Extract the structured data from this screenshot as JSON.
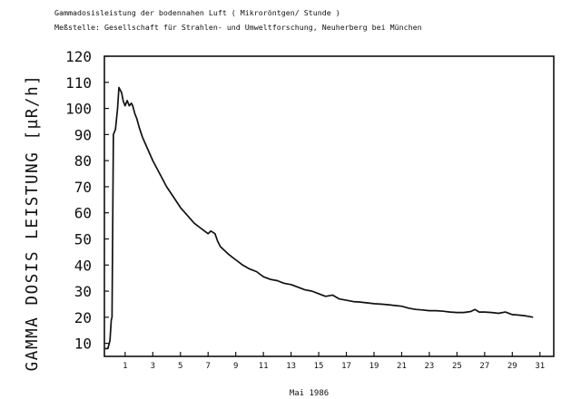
{
  "header": {
    "line1": "Gammadosisleistung der bodennahen Luft ( Mikroröntgen/ Stunde )",
    "line2": "Meßstelle: Gesellschaft für Strahlen- und Umweltforschung, Neuherberg bei München"
  },
  "chart_data": {
    "type": "line",
    "title": "Gammadosisleistung der bodennahen Luft ( Mikroröntgen/ Stunde )",
    "subtitle": "Meßstelle: Gesellschaft für Strahlen- und Umweltforschung, Neuherberg bei München",
    "xlabel": "Mai 1986",
    "ylabel": "GAMMA DOSIS LEISTUNG [µR/h]",
    "xlim": [
      -0.5,
      32
    ],
    "ylim": [
      5,
      120
    ],
    "x_ticks": [
      1,
      3,
      5,
      7,
      9,
      11,
      13,
      15,
      17,
      19,
      21,
      23,
      25,
      27,
      29,
      31
    ],
    "y_ticks": [
      10,
      20,
      30,
      40,
      50,
      60,
      70,
      80,
      90,
      100,
      110,
      120
    ],
    "grid": false,
    "series": [
      {
        "x": [
          -0.45,
          -0.25,
          -0.1,
          0.0,
          0.05,
          0.15,
          0.3,
          0.45,
          0.55,
          0.65,
          0.75,
          0.85,
          1.0,
          1.15,
          1.3,
          1.45,
          1.55,
          1.7,
          1.85,
          2.0,
          2.25,
          2.5,
          2.75,
          3.0,
          3.5,
          4.0,
          4.5,
          5.0,
          5.5,
          6.0,
          6.5,
          7.0,
          7.2,
          7.5,
          7.7,
          7.9,
          8.1,
          8.5,
          9.0,
          9.5,
          10.0,
          10.5,
          11.0,
          11.5,
          12.0,
          12.5,
          13.0,
          13.5,
          14.0,
          14.5,
          15.0,
          15.5,
          16.0,
          16.5,
          17.0,
          17.5,
          18.0,
          18.5,
          19.0,
          19.5,
          20.0,
          20.5,
          21.0,
          21.5,
          22.0,
          22.5,
          23.0,
          23.5,
          24.0,
          24.5,
          25.0,
          25.5,
          26.0,
          26.3,
          26.6,
          27.0,
          27.5,
          28.0,
          28.5,
          29.0,
          29.5,
          30.0,
          30.5
        ],
        "y": [
          8,
          8,
          11,
          19,
          20,
          90,
          92,
          100,
          108,
          107,
          106,
          103,
          101,
          103,
          101,
          102,
          101,
          98,
          96,
          93,
          89,
          86,
          83,
          80,
          75,
          70,
          66,
          62,
          59,
          56,
          54,
          52,
          53,
          52,
          49,
          47,
          46,
          44,
          42,
          40,
          38.5,
          37.5,
          35.5,
          34.5,
          34,
          33,
          32.5,
          31.5,
          30.5,
          30,
          29,
          28,
          28.5,
          27,
          26.5,
          26,
          25.8,
          25.5,
          25.2,
          25,
          24.8,
          24.5,
          24.2,
          23.5,
          23,
          22.8,
          22.5,
          22.5,
          22.3,
          22,
          21.8,
          21.8,
          22.2,
          23,
          22,
          22,
          21.8,
          21.5,
          22,
          21,
          20.8,
          20.5,
          20
        ]
      }
    ]
  }
}
